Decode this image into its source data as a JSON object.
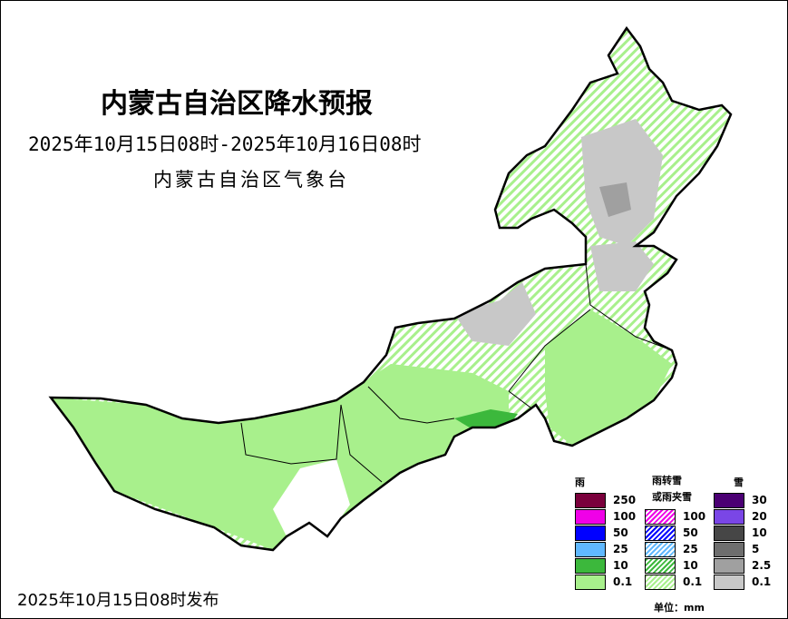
{
  "title": "内蒙古自治区降水预报",
  "period": "2025年10月15日08时-2025年10月16日08时",
  "agency": "内蒙古自治区气象台",
  "issued": "2025年10月15日08时发布",
  "legend": {
    "rain": {
      "title": "雨",
      "items": [
        {
          "label": "250",
          "color": "#7a003c"
        },
        {
          "label": "100",
          "color": "#f000e8"
        },
        {
          "label": "50",
          "color": "#0000ff"
        },
        {
          "label": "25",
          "color": "#60b8ff"
        },
        {
          "label": "10",
          "color": "#3cb83c"
        },
        {
          "label": "0.1",
          "color": "#a8f08c"
        }
      ]
    },
    "mixed": {
      "title": "雨转雪",
      "title2": "或雨夹雪",
      "items": [
        {
          "label": "100",
          "color": "#f000e8"
        },
        {
          "label": "50",
          "color": "#0000ff"
        },
        {
          "label": "25",
          "color": "#60b8ff"
        },
        {
          "label": "10",
          "color": "#3cb83c"
        },
        {
          "label": "0.1",
          "color": "#a8f08c"
        }
      ]
    },
    "snow": {
      "title": "雪",
      "items": [
        {
          "label": "30",
          "color": "#4b0073"
        },
        {
          "label": "20",
          "color": "#7a46e6"
        },
        {
          "label": "10",
          "color": "#464646"
        },
        {
          "label": "5",
          "color": "#6e6e6e"
        },
        {
          "label": "2.5",
          "color": "#a0a0a0"
        },
        {
          "label": "0.1",
          "color": "#c8c8c8"
        }
      ]
    },
    "unit": "单位：mm"
  }
}
